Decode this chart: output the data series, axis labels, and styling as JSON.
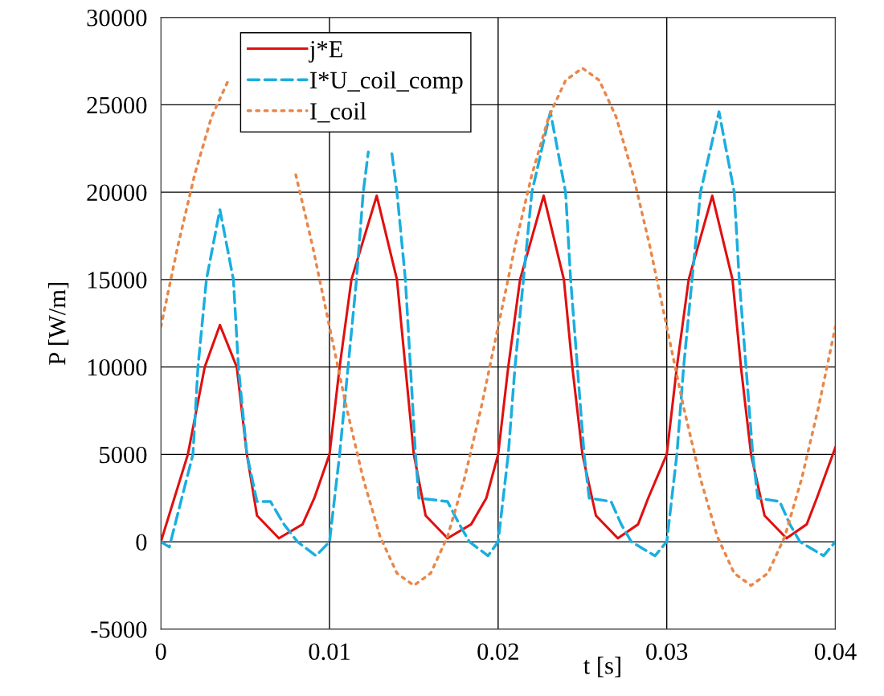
{
  "chart_data": {
    "type": "line",
    "xlabel": "t [s]",
    "ylabel": "P [W/m]",
    "xlim": [
      0,
      0.04
    ],
    "xticks": [
      0,
      0.01,
      0.02,
      0.03,
      0.04
    ],
    "ylim": [
      -5000,
      30000
    ],
    "yticks": [
      -5000,
      0,
      5000,
      10000,
      15000,
      20000,
      25000,
      30000
    ],
    "grid": true,
    "legend": "top left",
    "series": [
      {
        "name": "j*E",
        "color": "#e01010",
        "line_style": "solid",
        "x": [
          0,
          0.0016,
          0.0026,
          0.0035,
          0.0045,
          0.0051,
          0.0057,
          0.007,
          0.0084,
          0.0091,
          0.01,
          0.0106,
          0.0113,
          0.0128,
          0.014,
          0.0145,
          0.015,
          0.0157,
          0.017,
          0.0184,
          0.0193,
          0.02,
          0.0206,
          0.0213,
          0.0227,
          0.0239,
          0.0244,
          0.025,
          0.0258,
          0.0271,
          0.0283,
          0.0289,
          0.03,
          0.0306,
          0.0313,
          0.0327,
          0.0339,
          0.0344,
          0.035,
          0.0358,
          0.0371,
          0.0383,
          0.0389,
          0.04
        ],
        "values": [
          0,
          5000,
          10000,
          12400,
          10000,
          5000,
          1500,
          200,
          1000,
          2500,
          5000,
          10000,
          15000,
          19800,
          15000,
          10000,
          5000,
          1500,
          200,
          1000,
          2500,
          5000,
          10000,
          15000,
          19800,
          15000,
          10000,
          5000,
          1500,
          200,
          1000,
          2500,
          5000,
          10000,
          15000,
          19800,
          15000,
          10000,
          5000,
          1500,
          200,
          1000,
          2500,
          5400
        ]
      },
      {
        "name": "I*U_coil_comp",
        "color": "#1aaee0",
        "line_style": "dashed",
        "x": [
          0,
          0.0005,
          0.0019,
          0.0022,
          0.0027,
          0.0035,
          0.0043,
          0.0046,
          0.0051,
          0.0057,
          0.0065,
          0.0073,
          0.0081,
          0.0092,
          0.01,
          0.0106,
          0.0111,
          0.0116,
          0.012,
          0.0123,
          0.013,
          0.0137,
          0.014,
          0.0145,
          0.0148,
          0.0151,
          0.0153,
          0.017,
          0.0177,
          0.0183,
          0.0194,
          0.02,
          0.0206,
          0.021,
          0.0215,
          0.022,
          0.0231,
          0.024,
          0.0243,
          0.0247,
          0.0251,
          0.0254,
          0.0267,
          0.0273,
          0.0279,
          0.0293,
          0.03,
          0.0306,
          0.031,
          0.0315,
          0.032,
          0.0331,
          0.034,
          0.0343,
          0.0347,
          0.0351,
          0.0354,
          0.0367,
          0.0373,
          0.0379,
          0.0393,
          0.04
        ],
        "values": [
          0,
          -300,
          5000,
          10000,
          15000,
          19000,
          15000,
          10000,
          5000,
          2300,
          2300,
          1000,
          0,
          -800,
          0,
          5000,
          10000,
          15000,
          20000,
          22300,
          null,
          22200,
          20000,
          15000,
          10000,
          5000,
          2500,
          2300,
          1000,
          0,
          -800,
          0,
          5000,
          10000,
          15000,
          20000,
          24600,
          20000,
          15000,
          10000,
          5000,
          2500,
          2300,
          1000,
          0,
          -800,
          0,
          5000,
          10000,
          15000,
          20000,
          24600,
          20000,
          15000,
          10000,
          5000,
          2500,
          2300,
          1000,
          0,
          -800,
          0
        ]
      },
      {
        "name": "I_coil",
        "color": "#e8874a",
        "line_style": "dotted",
        "x": [
          0,
          0.001,
          0.002,
          0.003,
          0.004,
          0.005,
          0.006,
          0.007,
          0.008,
          0.009,
          0.01,
          0.011,
          0.012,
          0.013,
          0.014,
          0.015,
          0.016,
          0.017,
          0.018,
          0.019,
          0.02,
          0.021,
          0.022,
          0.023,
          0.024,
          0.025,
          0.026,
          0.027,
          0.028,
          0.029,
          0.03,
          0.031,
          0.032,
          0.033,
          0.034,
          0.035,
          0.036,
          0.037,
          0.038,
          0.039,
          0.04
        ],
        "values": [
          12300,
          16900,
          21000,
          24300,
          26400,
          null,
          null,
          null,
          21000,
          16900,
          12300,
          7700,
          3600,
          300,
          -1800,
          -2500,
          -1800,
          300,
          3600,
          7700,
          12300,
          16900,
          21000,
          24300,
          26400,
          27100,
          26400,
          24300,
          21000,
          16900,
          12300,
          7700,
          3600,
          300,
          -1800,
          -2500,
          -1800,
          300,
          3600,
          7700,
          12300
        ]
      }
    ]
  }
}
